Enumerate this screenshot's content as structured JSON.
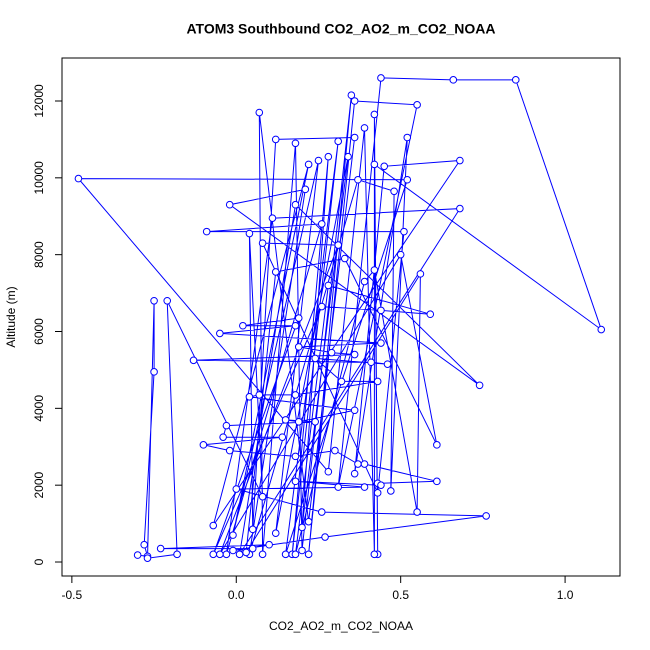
{
  "chart_data": {
    "type": "line",
    "title": "ATOM3 Southbound CO2_AO2_m_CO2_NOAA",
    "x_label": "CO2_AO2_m_CO2_NOAA",
    "y_label": "Altitude (m)",
    "color": "#0000ff",
    "xlim": [
      -0.53,
      1.167
    ],
    "ylim": [
      -364,
      13119
    ],
    "xticks": [
      -0.5,
      {
        "value": 0,
        "label": "0.0"
      },
      0.5,
      {
        "value": 1,
        "label": "1.0"
      }
    ],
    "yticks": [
      0,
      2000,
      4000,
      6000,
      8000,
      10000,
      12000
    ],
    "x": [
      -0.3,
      -0.27,
      -0.28,
      -0.25,
      -0.25,
      -0.27,
      -0.18,
      -0.21,
      0.08,
      0.04,
      0.05,
      0.12,
      0.36,
      0.22,
      0.07,
      0.08,
      0.18,
      0.2,
      0.35,
      0.22,
      0.36,
      0.55,
      0.31,
      0.44,
      0.66,
      0.85,
      1.11,
      0.42,
      0.43,
      0.42,
      0.42,
      0.39,
      0.28,
      -0.48,
      0.52,
      0.15,
      0.31,
      0.17,
      0.28,
      0.2,
      0.34,
      0.12,
      0.25,
      -0.01,
      0.22,
      -0.07,
      0.68,
      0.45,
      0.36,
      0.52,
      0.47,
      0.48,
      0.37,
      0.04,
      0.21,
      -0.02,
      0.74,
      0.18,
      0.01,
      0.68,
      0.11,
      -0.03,
      0.26,
      -0.09,
      0.51,
      0.43,
      0.08,
      0.31,
      -0.05,
      0.5,
      0.61,
      0.33,
      0.12,
      0.03,
      0.56,
      0.55,
      0.42,
      0.39,
      0.18,
      0.28,
      0.59,
      0.44,
      0.26,
      -0.07,
      0.19,
      0.02,
      0.18,
      -0.05,
      0.44,
      0.19,
      0.29,
      0.36,
      -0.13,
      0.41,
      0.46,
      0.24,
      0.32,
      0.43,
      0.18,
      0.07,
      0.04,
      0.36,
      0.19,
      0.15,
      0.24,
      -0.03,
      -0.04,
      0.14,
      -0.1,
      -0.02,
      0.18,
      0.3,
      0.37,
      0.39,
      0.61,
      0.43,
      0.44,
      0.18,
      0.39,
      0.0,
      0.26,
      0.76,
      0.27,
      -0.01,
      0.1,
      -0.23,
      0.05
    ],
    "values": [
      180,
      150,
      450,
      4950,
      6800,
      100,
      200,
      6800,
      1700,
      8550,
      850,
      11000,
      11050,
      1050,
      11700,
      200,
      10900,
      300,
      12150,
      200,
      12000,
      11900,
      1950,
      12600,
      12550,
      12550,
      6050,
      10350,
      200,
      11650,
      200,
      11300,
      2350,
      9980,
      9950,
      200,
      10950,
      200,
      10550,
      900,
      10550,
      750,
      10450,
      700,
      10350,
      950,
      10450,
      10300,
      2300,
      11050,
      1850,
      9650,
      9950,
      200,
      9700,
      9300,
      4600,
      9300,
      200,
      9200,
      8950,
      200,
      8800,
      8600,
      8600,
      1800,
      8300,
      8250,
      200,
      8000,
      3050,
      7900,
      7550,
      250,
      7500,
      1300,
      7600,
      7300,
      200,
      7200,
      6450,
      6550,
      6650,
      200,
      6350,
      6150,
      6150,
      5950,
      5700,
      5600,
      5450,
      5400,
      5250,
      5200,
      5150,
      5300,
      4700,
      4700,
      4350,
      4350,
      4300,
      3950,
      3650,
      3700,
      3650,
      3550,
      3250,
      3250,
      3050,
      2900,
      2750,
      2900,
      2550,
      2550,
      2100,
      2050,
      2000,
      2100,
      1950,
      1900,
      1300,
      1200,
      650,
      300,
      450,
      350,
      350
    ]
  }
}
